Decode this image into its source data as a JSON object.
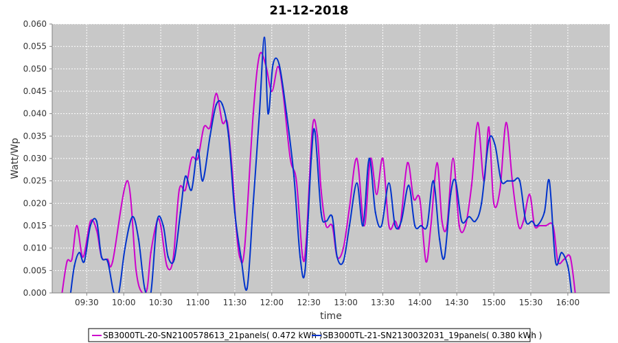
{
  "chart_data": {
    "type": "line",
    "title": "21-12-2018",
    "xlabel": "time",
    "ylabel": "Watt/Wp",
    "xlim": [
      "09:02",
      "16:34"
    ],
    "ylim": [
      0,
      0.06
    ],
    "y_ticks": [
      "0.000",
      "0.005",
      "0.010",
      "0.015",
      "0.020",
      "0.025",
      "0.030",
      "0.035",
      "0.040",
      "0.045",
      "0.050",
      "0.055",
      "0.060"
    ],
    "x_ticks": [
      "09:30",
      "10:00",
      "10:30",
      "11:00",
      "11:30",
      "12:00",
      "12:30",
      "13:00",
      "13:30",
      "14:00",
      "14:30",
      "15:00",
      "15:30",
      "16:00"
    ],
    "grid": true,
    "legend_position": "bottom",
    "background_color": "#c8c8c8",
    "series": [
      {
        "name": "SB3000TL-20-SN2100578613_21panels( 0.472 kWh )",
        "color": "#cc00cc",
        "points": [
          [
            "09:10",
            0.0
          ],
          [
            "09:14",
            0.007
          ],
          [
            "09:18",
            0.0075
          ],
          [
            "09:22",
            0.015
          ],
          [
            "09:27",
            0.008
          ],
          [
            "09:33",
            0.016
          ],
          [
            "09:38",
            0.014
          ],
          [
            "09:42",
            0.008
          ],
          [
            "09:47",
            0.0075
          ],
          [
            "09:51",
            0.007
          ],
          [
            "10:03",
            0.025
          ],
          [
            "10:10",
            0.005
          ],
          [
            "10:15",
            0.0
          ],
          [
            "10:19",
            0.001
          ],
          [
            "10:22",
            0.009
          ],
          [
            "10:27",
            0.016
          ],
          [
            "10:30",
            0.015
          ],
          [
            "10:35",
            0.006
          ],
          [
            "10:40",
            0.0075
          ],
          [
            "10:45",
            0.023
          ],
          [
            "10:50",
            0.023
          ],
          [
            "10:55",
            0.03
          ],
          [
            "11:00",
            0.03
          ],
          [
            "11:05",
            0.037
          ],
          [
            "11:10",
            0.037
          ],
          [
            "11:15",
            0.0445
          ],
          [
            "11:20",
            0.038
          ],
          [
            "11:24",
            0.038
          ],
          [
            "11:28",
            0.027
          ],
          [
            "11:31",
            0.015
          ],
          [
            "11:34",
            0.008
          ],
          [
            "11:38",
            0.01
          ],
          [
            "11:45",
            0.04
          ],
          [
            "11:50",
            0.053
          ],
          [
            "11:55",
            0.051
          ],
          [
            "12:00",
            0.045
          ],
          [
            "12:05",
            0.0505
          ],
          [
            "12:09",
            0.045
          ],
          [
            "12:15",
            0.03
          ],
          [
            "12:20",
            0.025
          ],
          [
            "12:25",
            0.008
          ],
          [
            "12:28",
            0.012
          ],
          [
            "12:33",
            0.037
          ],
          [
            "12:37",
            0.035
          ],
          [
            "12:40",
            0.023
          ],
          [
            "12:44",
            0.015
          ],
          [
            "12:49",
            0.015
          ],
          [
            "12:53",
            0.008
          ],
          [
            "12:58",
            0.01
          ],
          [
            "13:03",
            0.019
          ],
          [
            "13:09",
            0.03
          ],
          [
            "13:15",
            0.015
          ],
          [
            "13:20",
            0.03
          ],
          [
            "13:25",
            0.022
          ],
          [
            "13:30",
            0.03
          ],
          [
            "13:35",
            0.015
          ],
          [
            "13:40",
            0.016
          ],
          [
            "13:44",
            0.015
          ],
          [
            "13:50",
            0.029
          ],
          [
            "13:55",
            0.021
          ],
          [
            "14:00",
            0.021
          ],
          [
            "14:05",
            0.007
          ],
          [
            "14:09",
            0.015
          ],
          [
            "14:14",
            0.029
          ],
          [
            "14:18",
            0.016
          ],
          [
            "14:22",
            0.015
          ],
          [
            "14:27",
            0.03
          ],
          [
            "14:32",
            0.015
          ],
          [
            "14:37",
            0.015
          ],
          [
            "14:42",
            0.024
          ],
          [
            "14:47",
            0.038
          ],
          [
            "14:52",
            0.025
          ],
          [
            "14:56",
            0.037
          ],
          [
            "15:00",
            0.02
          ],
          [
            "15:05",
            0.023
          ],
          [
            "15:10",
            0.038
          ],
          [
            "15:15",
            0.025
          ],
          [
            "15:20",
            0.015
          ],
          [
            "15:24",
            0.016
          ],
          [
            "15:29",
            0.022
          ],
          [
            "15:33",
            0.015
          ],
          [
            "15:37",
            0.015
          ],
          [
            "15:42",
            0.015
          ],
          [
            "15:48",
            0.015
          ],
          [
            "15:52",
            0.007
          ],
          [
            "15:57",
            0.0075
          ],
          [
            "16:02",
            0.008
          ],
          [
            "16:06",
            0.0
          ]
        ]
      },
      {
        "name": "SB3000TL-21-SN2130032031_19panels( 0.380 kWh )",
        "color": "#0033cc",
        "points": [
          [
            "09:17",
            0.0
          ],
          [
            "09:20",
            0.006
          ],
          [
            "09:24",
            0.009
          ],
          [
            "09:28",
            0.007
          ],
          [
            "09:33",
            0.015
          ],
          [
            "09:38",
            0.016
          ],
          [
            "09:42",
            0.008
          ],
          [
            "09:47",
            0.007
          ],
          [
            "09:52",
            0.0
          ],
          [
            "09:56",
            0.0
          ],
          [
            "10:01",
            0.01
          ],
          [
            "10:07",
            0.017
          ],
          [
            "10:12",
            0.012
          ],
          [
            "10:17",
            0.001
          ],
          [
            "10:22",
            0.0
          ],
          [
            "10:27",
            0.016
          ],
          [
            "10:32",
            0.015
          ],
          [
            "10:36",
            0.008
          ],
          [
            "10:41",
            0.0075
          ],
          [
            "10:46",
            0.018
          ],
          [
            "10:50",
            0.026
          ],
          [
            "10:55",
            0.023
          ],
          [
            "11:00",
            0.032
          ],
          [
            "11:04",
            0.025
          ],
          [
            "11:10",
            0.035
          ],
          [
            "11:15",
            0.042
          ],
          [
            "11:20",
            0.042
          ],
          [
            "11:25",
            0.035
          ],
          [
            "11:30",
            0.018
          ],
          [
            "11:35",
            0.008
          ],
          [
            "11:40",
            0.001
          ],
          [
            "11:45",
            0.02
          ],
          [
            "11:50",
            0.04
          ],
          [
            "11:54",
            0.057
          ],
          [
            "11:57",
            0.04
          ],
          [
            "12:01",
            0.051
          ],
          [
            "12:06",
            0.051
          ],
          [
            "12:12",
            0.04
          ],
          [
            "12:18",
            0.026
          ],
          [
            "12:23",
            0.008
          ],
          [
            "12:27",
            0.005
          ],
          [
            "12:32",
            0.03
          ],
          [
            "12:35",
            0.036
          ],
          [
            "12:40",
            0.018
          ],
          [
            "12:44",
            0.016
          ],
          [
            "12:49",
            0.017
          ],
          [
            "12:53",
            0.008
          ],
          [
            "12:58",
            0.007
          ],
          [
            "13:03",
            0.015
          ],
          [
            "13:09",
            0.0245
          ],
          [
            "13:14",
            0.015
          ],
          [
            "13:19",
            0.03
          ],
          [
            "13:24",
            0.018
          ],
          [
            "13:29",
            0.015
          ],
          [
            "13:35",
            0.0245
          ],
          [
            "13:40",
            0.015
          ],
          [
            "13:45",
            0.016
          ],
          [
            "13:51",
            0.024
          ],
          [
            "13:56",
            0.015
          ],
          [
            "14:01",
            0.015
          ],
          [
            "14:06",
            0.015
          ],
          [
            "14:11",
            0.025
          ],
          [
            "14:16",
            0.012
          ],
          [
            "14:20",
            0.008
          ],
          [
            "14:25",
            0.022
          ],
          [
            "14:29",
            0.025
          ],
          [
            "14:34",
            0.016
          ],
          [
            "14:40",
            0.017
          ],
          [
            "14:45",
            0.016
          ],
          [
            "14:50",
            0.02
          ],
          [
            "14:56",
            0.034
          ],
          [
            "15:01",
            0.033
          ],
          [
            "15:06",
            0.025
          ],
          [
            "15:11",
            0.025
          ],
          [
            "15:16",
            0.025
          ],
          [
            "15:21",
            0.025
          ],
          [
            "15:26",
            0.016
          ],
          [
            "15:31",
            0.016
          ],
          [
            "15:35",
            0.015
          ],
          [
            "15:41",
            0.018
          ],
          [
            "15:45",
            0.025
          ],
          [
            "15:50",
            0.007
          ],
          [
            "15:55",
            0.009
          ],
          [
            "16:00",
            0.006
          ],
          [
            "16:03",
            0.0
          ]
        ]
      }
    ]
  }
}
